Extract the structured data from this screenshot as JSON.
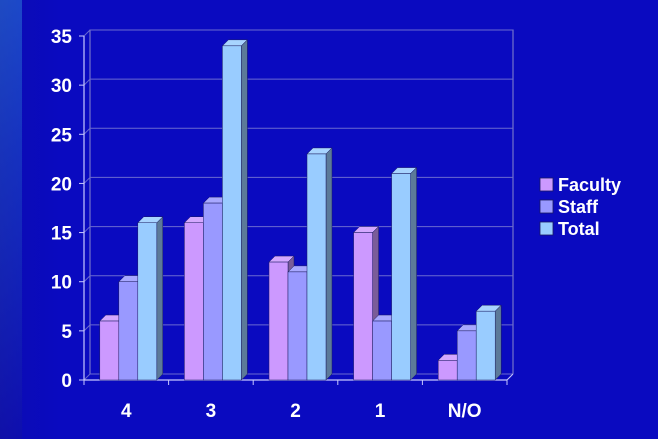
{
  "chart_data": {
    "type": "bar",
    "categories": [
      "4",
      "3",
      "2",
      "1",
      "N/O"
    ],
    "series": [
      {
        "name": "Faculty",
        "values": [
          6,
          16,
          12,
          15,
          2
        ],
        "color": "#cc99ff"
      },
      {
        "name": "Staff",
        "values": [
          10,
          18,
          11,
          6,
          5
        ],
        "color": "#9999ff"
      },
      {
        "name": "Total",
        "values": [
          16,
          34,
          23,
          21,
          7
        ],
        "color": "#99ccff"
      }
    ],
    "ylim": [
      0,
      35
    ],
    "yticks": [
      0,
      5,
      10,
      15,
      20,
      25,
      30,
      35
    ],
    "grid": true,
    "legend_position": "right",
    "three_d": true
  }
}
